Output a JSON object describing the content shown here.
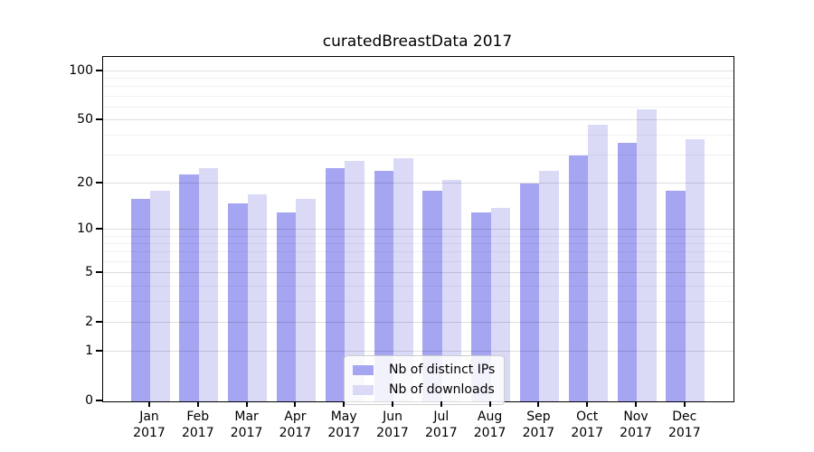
{
  "title": "curatedBreastData 2017",
  "chart_data": {
    "type": "bar",
    "title": "curatedBreastData 2017",
    "categories": [
      "Jan",
      "Feb",
      "Mar",
      "Apr",
      "May",
      "Jun",
      "Jul",
      "Aug",
      "Sep",
      "Oct",
      "Nov",
      "Dec"
    ],
    "category_year": "2017",
    "series": [
      {
        "name": "Nb of distinct IPs",
        "color": "#a5a5f2",
        "values": [
          16,
          23,
          15,
          13,
          25,
          24,
          18,
          13,
          20,
          30,
          36,
          18
        ]
      },
      {
        "name": "Nb of downloads",
        "color": "#dadaf7",
        "values": [
          18,
          25,
          17,
          16,
          28,
          29,
          21,
          14,
          24,
          47,
          58,
          38
        ]
      }
    ],
    "y_axis": {
      "scale": "log1p",
      "tick_labels": [
        "0",
        "1",
        "2",
        "5",
        "10",
        "20",
        "50",
        "100"
      ],
      "major_ticks": [
        0,
        1,
        2,
        5,
        10,
        20,
        50,
        100
      ],
      "minor_gridlines": [
        3,
        4,
        6,
        7,
        8,
        9,
        30,
        40,
        60,
        70,
        80,
        90
      ],
      "range_top": 122
    },
    "xlabel": "",
    "ylabel": "",
    "grid": true,
    "legend": {
      "position": "lower-center",
      "entries": [
        "Nb of distinct IPs",
        "Nb of downloads"
      ]
    }
  },
  "legend": {
    "items": [
      {
        "label": "Nb of distinct IPs"
      },
      {
        "label": "Nb of downloads"
      }
    ]
  }
}
